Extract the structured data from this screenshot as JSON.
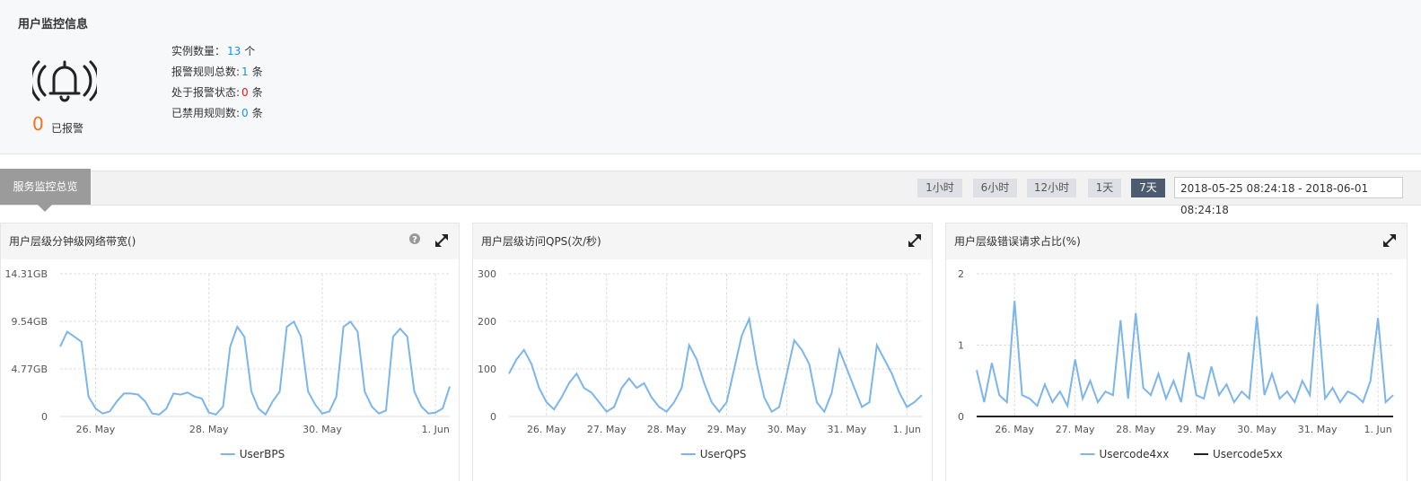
{
  "header": {
    "title": "用户监控信息",
    "alert_count": 0,
    "alert_label": "已报警",
    "stats": [
      {
        "label": "实例数量：",
        "value": 13,
        "unit": "个",
        "color": "#1a8fe3"
      },
      {
        "label": "报警规则总数:",
        "value": 1,
        "unit": "条",
        "color": "#1a8fe3"
      },
      {
        "label": "处于报警状态:",
        "value": 0,
        "unit": "条",
        "color": "#e8141b"
      },
      {
        "label": "已禁用规则数:",
        "value": 0,
        "unit": "条",
        "color": "#1a8fe3"
      }
    ]
  },
  "tab": "服务监控总览",
  "time_buttons": [
    "1小时",
    "6小时",
    "12小时",
    "1天",
    "7天"
  ],
  "active_button": 4,
  "date_range": "2018-05-25 08:24:18 - 2018-06-01 08:24:18",
  "chart_data": [
    {
      "type": "line",
      "title": "用户层级分钟级网络带宽()",
      "categories": [
        null,
        null,
        null,
        null,
        null,
        "26. May",
        null,
        null,
        null,
        null,
        null,
        null,
        null,
        null,
        null,
        null,
        null,
        null,
        null,
        null,
        null,
        "28. May",
        null,
        null,
        null,
        null,
        null,
        null,
        null,
        null,
        null,
        null,
        null,
        null,
        null,
        null,
        null,
        "30. May",
        null,
        null,
        null,
        null,
        null,
        null,
        null,
        null,
        null,
        null,
        null,
        null,
        null,
        null,
        null,
        "1. Jun",
        null,
        null
      ],
      "series": [
        {
          "name": "UserBPS",
          "color": "#7cb5ec",
          "values": [
            7,
            8.5,
            8,
            7.5,
            2,
            0.8,
            0.3,
            0.5,
            1.5,
            2.3,
            2.3,
            2.2,
            1.5,
            0.3,
            0.2,
            0.8,
            2.3,
            2.2,
            2.4,
            2,
            1.8,
            0.4,
            0.2,
            1,
            7,
            9,
            8,
            2.5,
            0.8,
            0.2,
            1.5,
            2.5,
            9,
            9.5,
            8,
            2.5,
            1.2,
            0.3,
            0.5,
            2,
            9,
            9.5,
            8.5,
            2.5,
            1,
            0.3,
            0.6,
            8,
            8.8,
            8,
            2.5,
            1,
            0.3,
            0.4,
            0.8,
            3
          ]
        }
      ],
      "ylim": [
        0,
        14.31
      ],
      "yticks": [
        0,
        {
          "value": 4.77,
          "label": "4.77GB"
        },
        {
          "value": 9.54,
          "label": "9.54GB"
        },
        {
          "value": 14.31,
          "label": "14.31GB"
        }
      ],
      "grid": true
    },
    {
      "type": "line",
      "title": "用户层级访问QPS(次/秒)",
      "categories": [
        null,
        null,
        null,
        null,
        null,
        "26. May",
        null,
        null,
        null,
        null,
        null,
        null,
        null,
        "27. May",
        null,
        null,
        null,
        null,
        null,
        null,
        null,
        "28. May",
        null,
        null,
        null,
        null,
        null,
        null,
        null,
        "29. May",
        null,
        null,
        null,
        null,
        null,
        null,
        null,
        "30. May",
        null,
        null,
        null,
        null,
        null,
        null,
        null,
        "31. May",
        null,
        null,
        null,
        null,
        null,
        null,
        null,
        "1. Jun",
        null,
        null
      ],
      "series": [
        {
          "name": "UserQPS",
          "color": "#7cb5ec",
          "values": [
            90,
            120,
            140,
            110,
            60,
            30,
            15,
            40,
            70,
            90,
            60,
            50,
            30,
            10,
            20,
            60,
            80,
            60,
            70,
            40,
            20,
            10,
            30,
            60,
            150,
            120,
            70,
            30,
            10,
            30,
            100,
            170,
            205,
            110,
            40,
            10,
            20,
            90,
            160,
            140,
            110,
            30,
            10,
            50,
            140,
            100,
            60,
            20,
            30,
            150,
            120,
            90,
            50,
            20,
            30,
            45
          ]
        }
      ],
      "ylim": [
        0,
        300
      ],
      "yticks": [
        0,
        100,
        200,
        300
      ],
      "grid": true
    },
    {
      "type": "line",
      "title": "用户层级错误请求占比(%)",
      "categories": [
        null,
        null,
        null,
        null,
        null,
        "26. May",
        null,
        null,
        null,
        null,
        null,
        null,
        null,
        "27. May",
        null,
        null,
        null,
        null,
        null,
        null,
        null,
        "28. May",
        null,
        null,
        null,
        null,
        null,
        null,
        null,
        "29. May",
        null,
        null,
        null,
        null,
        null,
        null,
        null,
        "30. May",
        null,
        null,
        null,
        null,
        null,
        null,
        null,
        "31. May",
        null,
        null,
        null,
        null,
        null,
        null,
        null,
        "1. Jun",
        null,
        null
      ],
      "series": [
        {
          "name": "Usercode4xx",
          "color": "#7cb5ec",
          "values": [
            0.65,
            0.2,
            0.75,
            0.3,
            0.2,
            1.62,
            0.3,
            0.25,
            0.15,
            0.45,
            0.2,
            0.35,
            0.15,
            0.8,
            0.25,
            0.5,
            0.2,
            0.35,
            0.3,
            1.35,
            0.25,
            1.45,
            0.4,
            0.3,
            0.6,
            0.25,
            0.5,
            0.2,
            0.9,
            0.3,
            0.25,
            0.7,
            0.3,
            0.45,
            0.2,
            0.35,
            0.25,
            1.4,
            0.3,
            0.6,
            0.25,
            0.35,
            0.2,
            0.5,
            0.3,
            1.58,
            0.25,
            0.4,
            0.2,
            0.35,
            0.3,
            0.2,
            0.5,
            1.38,
            0.2,
            0.3
          ]
        },
        {
          "name": "Usercode5xx",
          "color": "#222222",
          "values": [
            0,
            0,
            0,
            0,
            0,
            0,
            0,
            0,
            0,
            0,
            0,
            0,
            0,
            0,
            0,
            0,
            0,
            0,
            0,
            0,
            0,
            0,
            0,
            0,
            0,
            0,
            0,
            0,
            0,
            0,
            0,
            0,
            0,
            0,
            0,
            0,
            0,
            0,
            0,
            0,
            0,
            0,
            0,
            0,
            0,
            0,
            0,
            0,
            0,
            0,
            0,
            0,
            0,
            0,
            0,
            0
          ]
        }
      ],
      "ylim": [
        0,
        2
      ],
      "yticks": [
        0,
        1,
        2
      ],
      "grid": true
    }
  ]
}
